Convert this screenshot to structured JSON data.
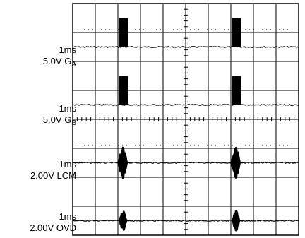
{
  "chart_data": {
    "type": "line",
    "title": "",
    "grid": true,
    "divisions": {
      "x": 10,
      "y": 8
    },
    "channels": [
      {
        "timebase": "1ms",
        "scale": "5.0V",
        "signal": "G",
        "signal_sub": "A",
        "baseline_div": 1.5,
        "burst_height_div": 1.0,
        "burst_kind": "pulse",
        "bursts_div": [
          [
            2.05,
            2.45
          ],
          [
            7.05,
            7.45
          ]
        ]
      },
      {
        "timebase": "1ms",
        "scale": "5.0V",
        "signal": "G",
        "signal_sub": "B",
        "baseline_div": 3.5,
        "burst_height_div": 1.0,
        "burst_kind": "pulse",
        "bursts_div": [
          [
            2.05,
            2.45
          ],
          [
            7.05,
            7.45
          ]
        ]
      },
      {
        "timebase": "1ms",
        "scale": "2.00V",
        "signal": "LCM",
        "signal_sub": "",
        "baseline_div": 5.5,
        "burst_height_div": 0.6,
        "burst_kind": "burst",
        "bursts_div": [
          [
            2.0,
            2.6
          ],
          [
            7.0,
            7.6
          ]
        ]
      },
      {
        "timebase": "1ms",
        "scale": "2.00V",
        "signal": "OVD",
        "signal_sub": "",
        "baseline_div": 7.5,
        "burst_height_div": 0.4,
        "burst_kind": "burst",
        "bursts_div": [
          [
            2.05,
            2.55
          ],
          [
            7.05,
            7.55
          ]
        ]
      }
    ]
  }
}
